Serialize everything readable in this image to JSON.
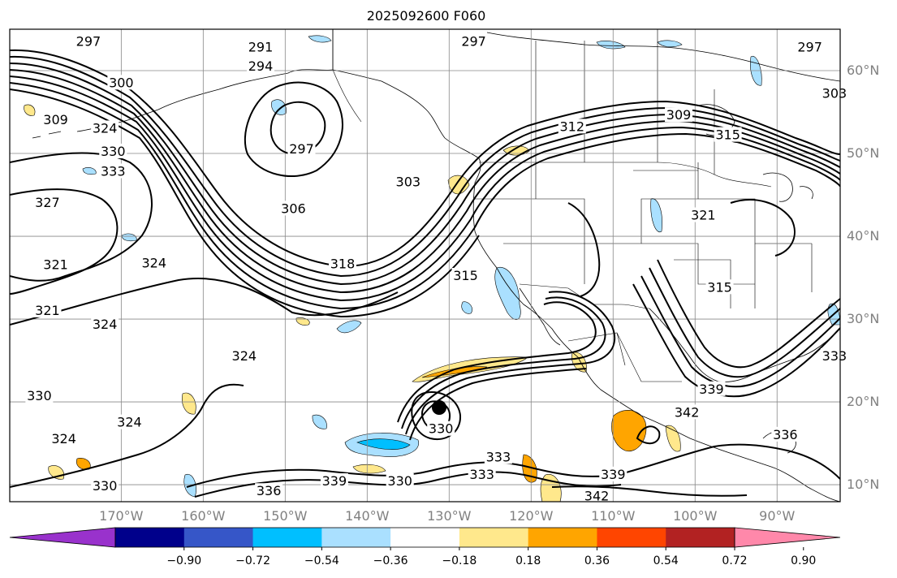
{
  "title": "2025092600 F060",
  "colors": {
    "frame": "#000000",
    "grid": "#888888",
    "contour": "#000000",
    "tick_label": "#808080"
  },
  "lat_labels": [
    {
      "lat": 60,
      "label": "60°N"
    },
    {
      "lat": 50,
      "label": "50°N"
    },
    {
      "lat": 40,
      "label": "40°N"
    },
    {
      "lat": 30,
      "label": "30°N"
    },
    {
      "lat": 20,
      "label": "20°N"
    },
    {
      "lat": 10,
      "label": "10°N"
    }
  ],
  "lon_labels": [
    {
      "lon": -170,
      "label": "170°W"
    },
    {
      "lon": -160,
      "label": "160°W"
    },
    {
      "lon": -150,
      "label": "150°W"
    },
    {
      "lon": -140,
      "label": "140°W"
    },
    {
      "lon": -130,
      "label": "130°W"
    },
    {
      "lon": -120,
      "label": "120°W"
    },
    {
      "lon": -110,
      "label": "110°W"
    },
    {
      "lon": -100,
      "label": "100°W"
    },
    {
      "lon": -90,
      "label": "90°W"
    }
  ],
  "colorbar": {
    "colors": [
      "#9932cc",
      "#00008b",
      "#3656c8",
      "#00bfff",
      "#aae0ff",
      "#ffffff",
      "#ffe88c",
      "#ffa500",
      "#ff4500",
      "#b22222",
      "#ff88aa"
    ],
    "ticks": [
      "−0.90",
      "−0.72",
      "−0.54",
      "−0.36",
      "−0.18",
      "0.18",
      "0.36",
      "0.54",
      "0.72",
      "0.90"
    ]
  },
  "contour_labels": [
    {
      "text": "297",
      "lon": -174,
      "lat": 63.5
    },
    {
      "text": "291",
      "lon": -153,
      "lat": 62.8
    },
    {
      "text": "294",
      "lon": -153,
      "lat": 60.5
    },
    {
      "text": "297",
      "lon": -127,
      "lat": 63.5
    },
    {
      "text": "297",
      "lon": -86,
      "lat": 62.8
    },
    {
      "text": "300",
      "lon": -170,
      "lat": 58.5
    },
    {
      "text": "309",
      "lon": -178,
      "lat": 54
    },
    {
      "text": "324",
      "lon": -172,
      "lat": 53
    },
    {
      "text": "330",
      "lon": -171,
      "lat": 50.2
    },
    {
      "text": "333",
      "lon": -171,
      "lat": 47.8
    },
    {
      "text": "297",
      "lon": -148,
      "lat": 50.5
    },
    {
      "text": "327",
      "lon": -179,
      "lat": 44
    },
    {
      "text": "306",
      "lon": -149,
      "lat": 43.3
    },
    {
      "text": "303",
      "lon": -135,
      "lat": 46.5
    },
    {
      "text": "312",
      "lon": -115,
      "lat": 53.2
    },
    {
      "text": "309",
      "lon": -102,
      "lat": 54.6
    },
    {
      "text": "315",
      "lon": -96,
      "lat": 52.2
    },
    {
      "text": "303",
      "lon": -83,
      "lat": 57.2
    },
    {
      "text": "321",
      "lon": -178,
      "lat": 36.5
    },
    {
      "text": "324",
      "lon": -166,
      "lat": 36.7
    },
    {
      "text": "318",
      "lon": -143,
      "lat": 36.6
    },
    {
      "text": "315",
      "lon": -128,
      "lat": 35.2
    },
    {
      "text": "321",
      "lon": -99,
      "lat": 42.5
    },
    {
      "text": "315",
      "lon": -97,
      "lat": 33.8
    },
    {
      "text": "321",
      "lon": -179,
      "lat": 31
    },
    {
      "text": "324",
      "lon": -172,
      "lat": 29.3
    },
    {
      "text": "324",
      "lon": -155,
      "lat": 25.5
    },
    {
      "text": "330",
      "lon": -180,
      "lat": 20.7
    },
    {
      "text": "324",
      "lon": -169,
      "lat": 17.5
    },
    {
      "text": "324",
      "lon": -177,
      "lat": 15.5
    },
    {
      "text": "330",
      "lon": -131,
      "lat": 16.7
    },
    {
      "text": "342",
      "lon": -101,
      "lat": 18.7
    },
    {
      "text": "339",
      "lon": -98,
      "lat": 21.5
    },
    {
      "text": "336",
      "lon": -89,
      "lat": 16
    },
    {
      "text": "333",
      "lon": -83,
      "lat": 25.5
    },
    {
      "text": "330",
      "lon": -172,
      "lat": 9.8
    },
    {
      "text": "336",
      "lon": -152,
      "lat": 9.2
    },
    {
      "text": "339",
      "lon": -144,
      "lat": 10.4
    },
    {
      "text": "330",
      "lon": -136,
      "lat": 10.4
    },
    {
      "text": "333",
      "lon": -126,
      "lat": 11.2
    },
    {
      "text": "333",
      "lon": -124,
      "lat": 13.3
    },
    {
      "text": "339",
      "lon": -110,
      "lat": 11.2
    },
    {
      "text": "342",
      "lon": -112,
      "lat": 8.6
    }
  ]
}
